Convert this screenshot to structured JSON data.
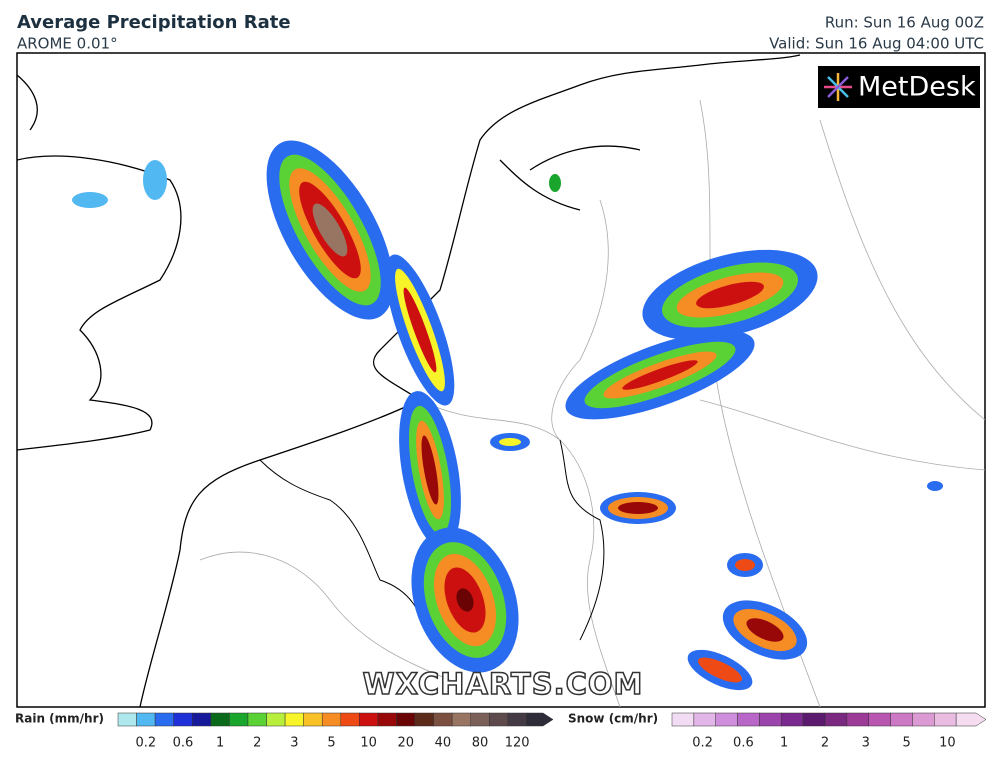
{
  "header": {
    "title": "Average Precipitation Rate",
    "model": "AROME 0.01°",
    "run": "Run: Sun 16 Aug 00Z",
    "valid": "Valid: Sun 16 Aug 04:00 UTC"
  },
  "logo": "MetDesk",
  "watermark": "WXCHARTS.COM",
  "legend": {
    "rain": {
      "label": "Rain (mm/hr)",
      "ticks": [
        "0.2",
        "0.6",
        "1",
        "2",
        "3",
        "5",
        "10",
        "20",
        "40",
        "80",
        "120"
      ],
      "colors": [
        "#aee8ec",
        "#52b8f2",
        "#2a6cf0",
        "#2030d8",
        "#161a9a",
        "#0b6a1a",
        "#1aa52c",
        "#5ad236",
        "#b8ee3c",
        "#f7f52a",
        "#f8c226",
        "#f68c24",
        "#ee4a16",
        "#cc1010",
        "#990808",
        "#6a0404",
        "#5c2a1a",
        "#7c5040",
        "#987462",
        "#7a6058",
        "#5e4a4c",
        "#443a44",
        "#2e2c38"
      ]
    },
    "snow": {
      "label": "Snow (cm/hr)",
      "ticks": [
        "0.2",
        "0.6",
        "1",
        "2",
        "3",
        "5",
        "10"
      ],
      "colors": [
        "#f2dcf4",
        "#e2b6e8",
        "#cf8edb",
        "#b866c8",
        "#9a44ac",
        "#7a2a8e",
        "#5c1a6e",
        "#7a2880",
        "#9c3a98",
        "#b856b0",
        "#cc78c4",
        "#dc9ad4",
        "#eabce2",
        "#f6dcf0"
      ]
    }
  }
}
